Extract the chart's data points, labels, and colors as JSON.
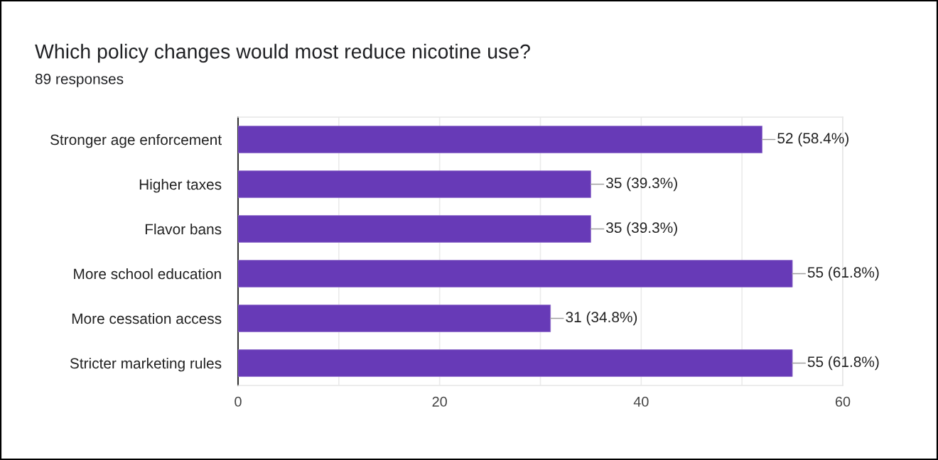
{
  "chart_data": {
    "type": "bar",
    "orientation": "horizontal",
    "title": "Which policy changes would most reduce nicotine use?",
    "subtitle": "89 responses",
    "categories": [
      "Stronger age enforcement",
      "Higher taxes",
      "Flavor bans",
      "More school education",
      "More cessation access",
      "Stricter marketing rules"
    ],
    "values": [
      52,
      35,
      35,
      55,
      31,
      55
    ],
    "color": "#673ab7",
    "value_labels": [
      "52 (58.4%)",
      "35 (39.3%)",
      "35 (39.3%)",
      "55 (61.8%)",
      "31 (34.8%)",
      "55 (61.8%)"
    ],
    "xlim": [
      0,
      60
    ],
    "xticks": [
      0,
      {
        "value": 10,
        "label": null
      },
      20,
      {
        "value": 30,
        "label": null
      },
      40,
      {
        "value": 50,
        "label": null
      },
      60
    ],
    "grid": "x"
  }
}
